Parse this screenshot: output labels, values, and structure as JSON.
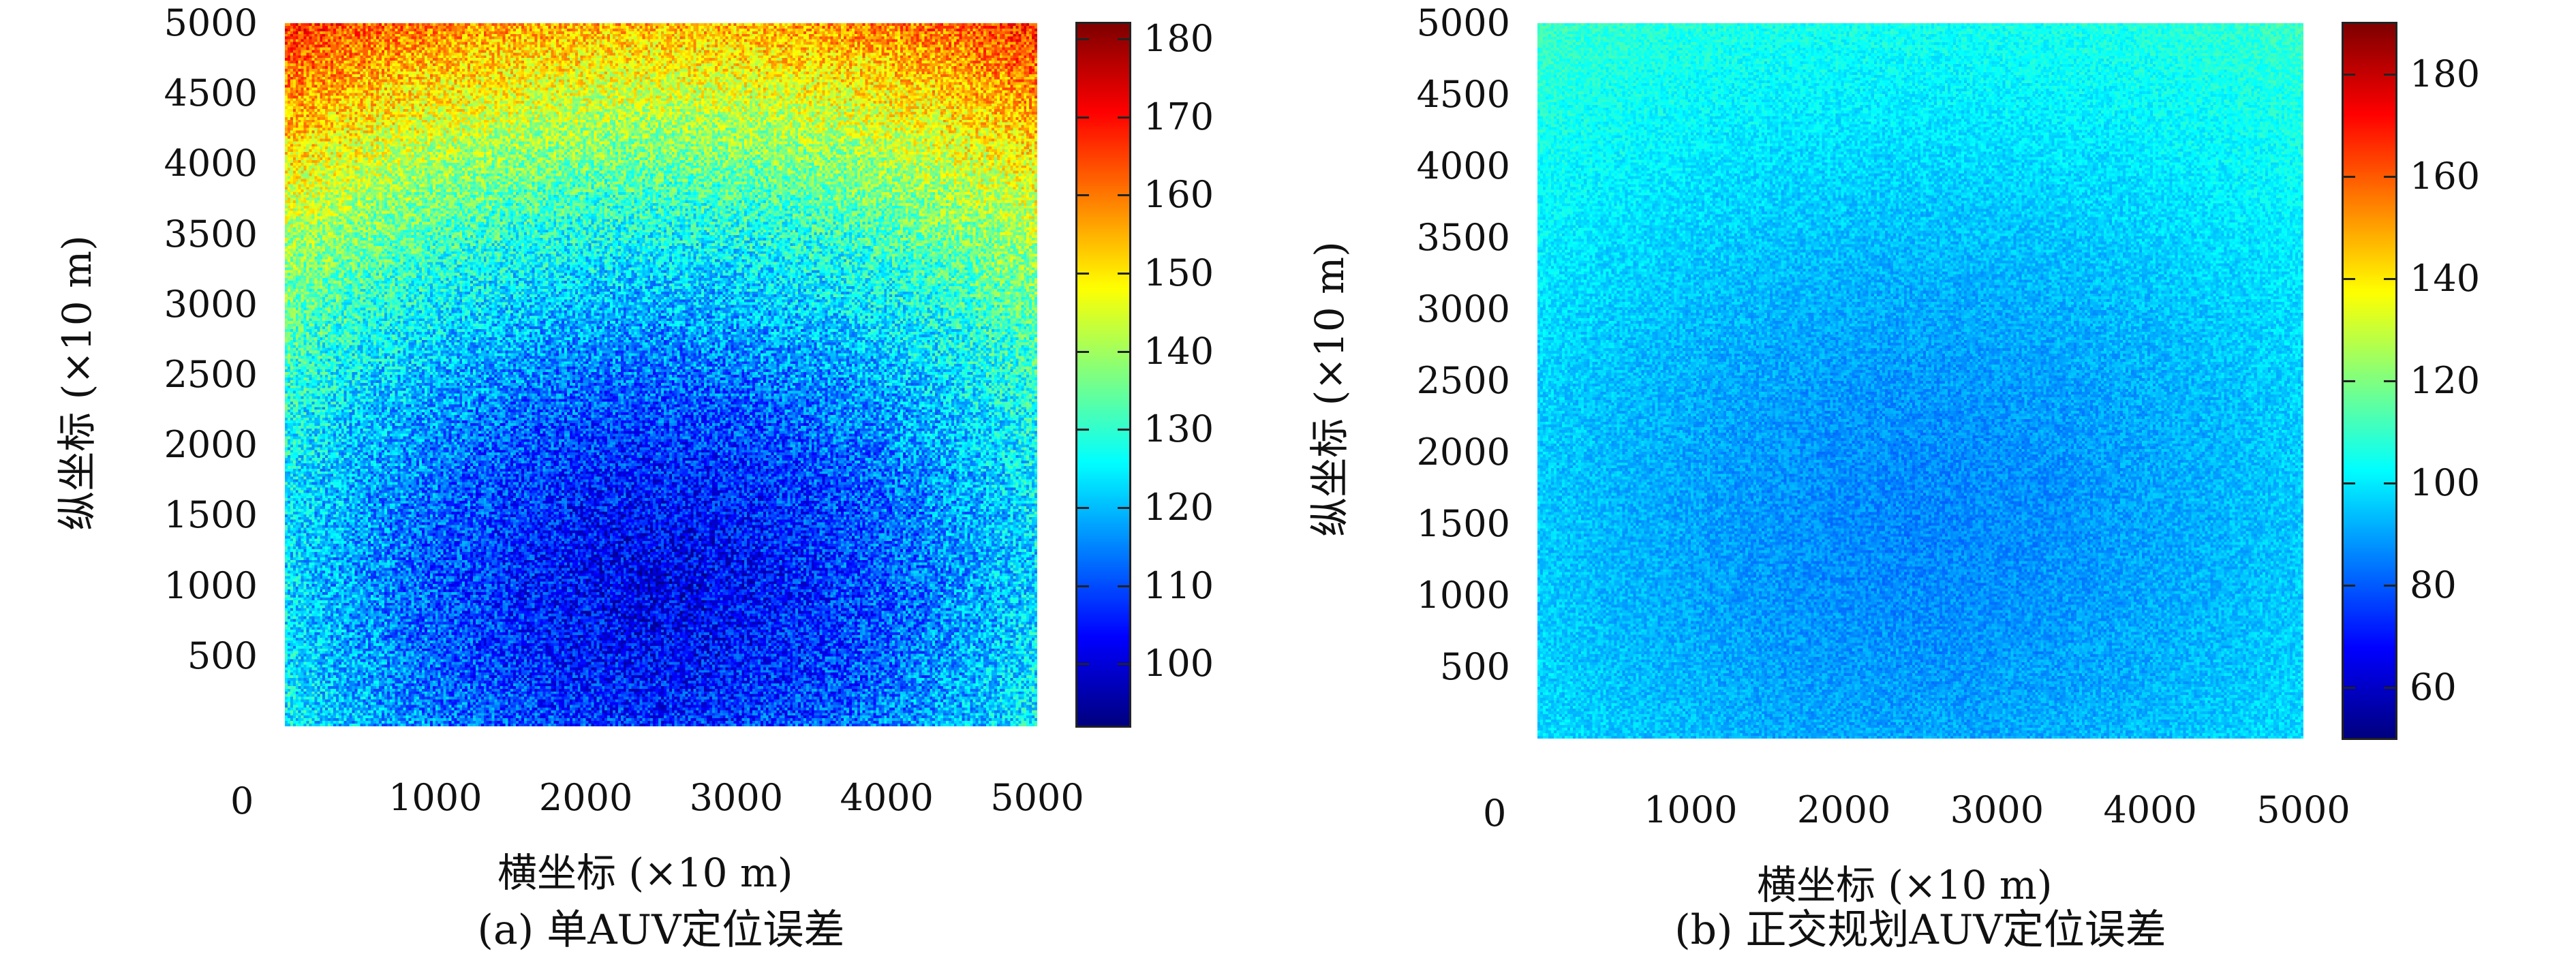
{
  "chart_data": [
    {
      "type": "heatmap",
      "caption": "(a) 单AUV定位误差",
      "xlabel": "横坐标 (×10 m)",
      "ylabel": "纵坐标 (×10 m)",
      "origin_label": "0",
      "xlim": [
        0,
        5000
      ],
      "ylim": [
        0,
        5000
      ],
      "x_ticks": [
        "1000",
        "2000",
        "3000",
        "4000",
        "5000"
      ],
      "y_ticks": [
        "500",
        "1000",
        "1500",
        "2000",
        "2500",
        "3000",
        "3500",
        "4000",
        "4500",
        "5000"
      ],
      "colorbar": {
        "colormap": "jet",
        "range": [
          92,
          182
        ],
        "ticks": [
          "100",
          "110",
          "120",
          "130",
          "140",
          "150",
          "160",
          "170",
          "180"
        ]
      },
      "field": {
        "min_center": [
          2500,
          1000
        ],
        "center_value": 102,
        "corner_top_value": 165,
        "noise": 10
      }
    },
    {
      "type": "heatmap",
      "caption": "(b) 正交规划AUV定位误差",
      "xlabel": "横坐标 (×10 m)",
      "ylabel": "纵坐标 (×10 m)",
      "origin_label": "0",
      "xlim": [
        0,
        5000
      ],
      "ylim": [
        0,
        5000
      ],
      "x_ticks": [
        "1000",
        "2000",
        "3000",
        "4000",
        "5000"
      ],
      "y_ticks": [
        "500",
        "1000",
        "1500",
        "2000",
        "2500",
        "3000",
        "3500",
        "4000",
        "4500",
        "5000"
      ],
      "colorbar": {
        "colormap": "jet",
        "range": [
          50,
          190
        ],
        "ticks": [
          "60",
          "80",
          "100",
          "120",
          "140",
          "160",
          "180"
        ]
      },
      "field": {
        "min_center": [
          2500,
          1500
        ],
        "center_value": 86,
        "corner_top_value": 110,
        "noise": 6
      }
    }
  ]
}
